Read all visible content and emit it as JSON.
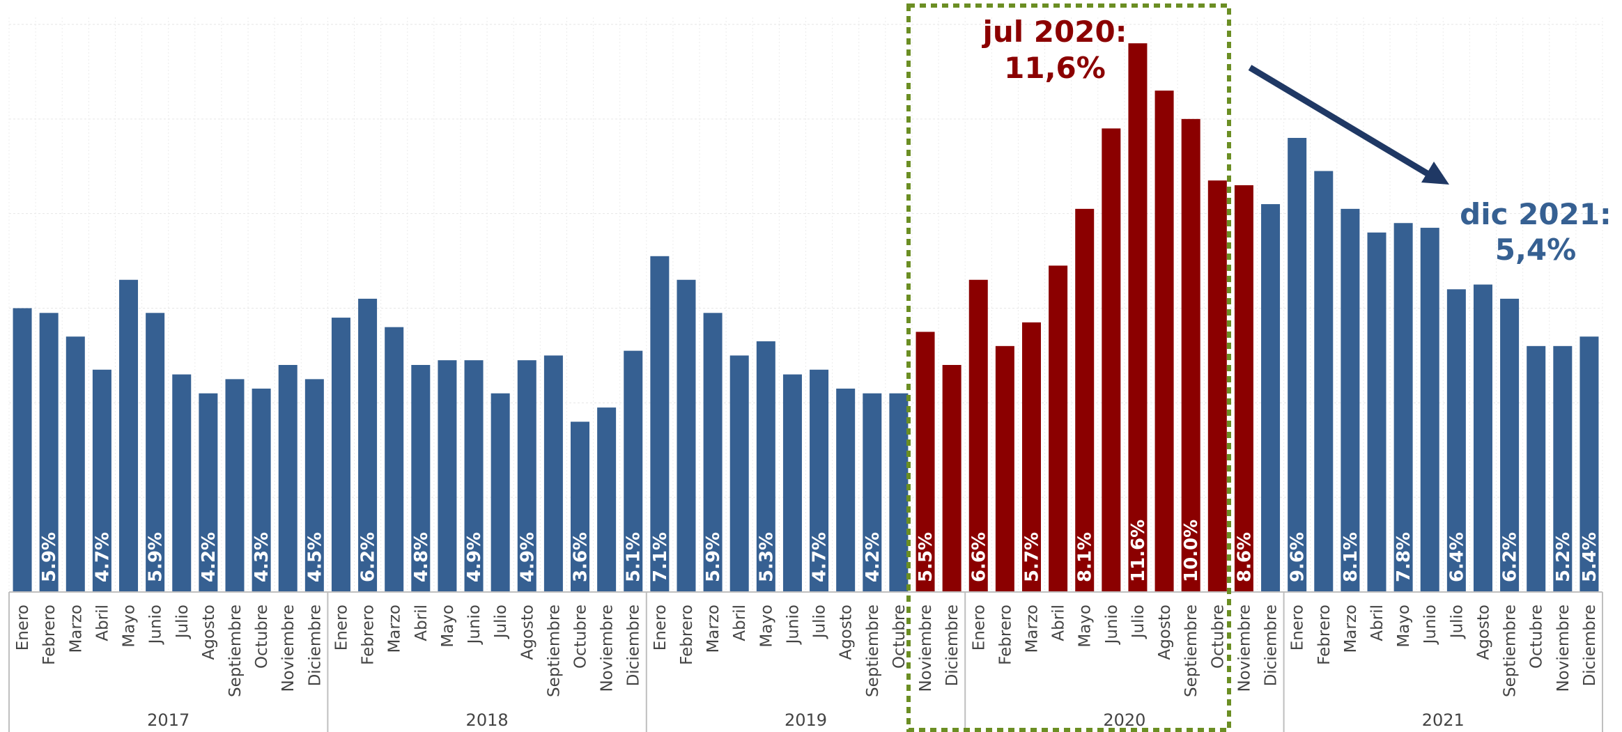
{
  "chart_data": {
    "type": "bar",
    "title": "",
    "xlabel": "",
    "ylabel": "",
    "ylim": [
      0,
      12
    ],
    "grid": true,
    "colors": {
      "default": "#366092",
      "highlight": "#8b0000",
      "box": "#6b8e23",
      "arrow": "#1f3864"
    },
    "years": [
      {
        "label": "2017",
        "start": 0,
        "count": 12
      },
      {
        "label": "2018",
        "start": 12,
        "count": 12
      },
      {
        "label": "2019",
        "start": 24,
        "count": 12
      },
      {
        "label": "2020",
        "start": 36,
        "count": 12
      },
      {
        "label": "2021",
        "start": 48,
        "count": 12
      }
    ],
    "categories": [
      "Enero",
      "Febrero",
      "Marzo",
      "Abril",
      "Mayo",
      "Junio",
      "Julio",
      "Agosto",
      "Septiembre",
      "Octubre",
      "Noviembre",
      "Diciembre",
      "Enero",
      "Febrero",
      "Marzo",
      "Abril",
      "Mayo",
      "Junio",
      "Julio",
      "Agosto",
      "Septiembre",
      "Octubre",
      "Noviembre",
      "Diciembre",
      "Enero",
      "Febrero",
      "Marzo",
      "Abril",
      "Mayo",
      "Junio",
      "Julio",
      "Agosto",
      "Septiembre",
      "Octubre",
      "Noviembre",
      "Diciembre",
      "Enero",
      "Febrero",
      "Marzo",
      "Abril",
      "Mayo",
      "Junio",
      "Julio",
      "Agosto",
      "Septiembre",
      "Octubre",
      "Noviembre",
      "Diciembre",
      "Enero",
      "Febrero",
      "Marzo",
      "Abril",
      "Mayo",
      "Junio",
      "Julio",
      "Agosto",
      "Septiembre",
      "Octubre",
      "Noviembre",
      "Diciembre"
    ],
    "values": [
      6.0,
      5.9,
      5.4,
      4.7,
      6.6,
      5.9,
      4.6,
      4.2,
      4.5,
      4.3,
      4.8,
      4.5,
      5.8,
      6.2,
      5.6,
      4.8,
      4.9,
      4.9,
      4.2,
      4.9,
      5.0,
      3.6,
      3.9,
      5.1,
      7.1,
      6.6,
      5.9,
      5.0,
      5.3,
      4.6,
      4.7,
      4.3,
      4.2,
      4.2,
      5.5,
      4.8,
      6.6,
      5.2,
      5.7,
      6.9,
      8.1,
      9.8,
      11.6,
      10.6,
      10.0,
      8.7,
      8.6,
      8.2,
      9.6,
      8.9,
      8.1,
      7.6,
      7.8,
      7.7,
      6.4,
      6.5,
      6.2,
      5.2,
      5.2,
      5.4
    ],
    "data_labels": [
      "",
      "5.9%",
      "",
      "4.7%",
      "",
      "5.9%",
      "",
      "4.2%",
      "",
      "4.3%",
      "",
      "4.5%",
      "",
      "6.2%",
      "",
      "4.8%",
      "",
      "4.9%",
      "",
      "4.9%",
      "",
      "3.6%",
      "",
      "5.1%",
      "7.1%",
      "",
      "5.9%",
      "",
      "5.3%",
      "",
      "4.7%",
      "",
      "4.2%",
      "",
      "5.5%",
      "",
      "6.6%",
      "",
      "5.7%",
      "",
      "8.1%",
      "",
      "11.6%",
      "",
      "10.0%",
      "",
      "8.6%",
      "",
      "9.6%",
      "",
      "8.1%",
      "",
      "7.8%",
      "",
      "6.4%",
      "",
      "6.2%",
      "",
      "5.2%",
      "5.4%"
    ],
    "highlight_range": [
      34,
      46
    ],
    "annotations": {
      "peak": {
        "line1": "jul 2020:",
        "line2": "11,6%"
      },
      "last": {
        "line1": "dic 2021:",
        "line2": "5,4%"
      }
    }
  }
}
